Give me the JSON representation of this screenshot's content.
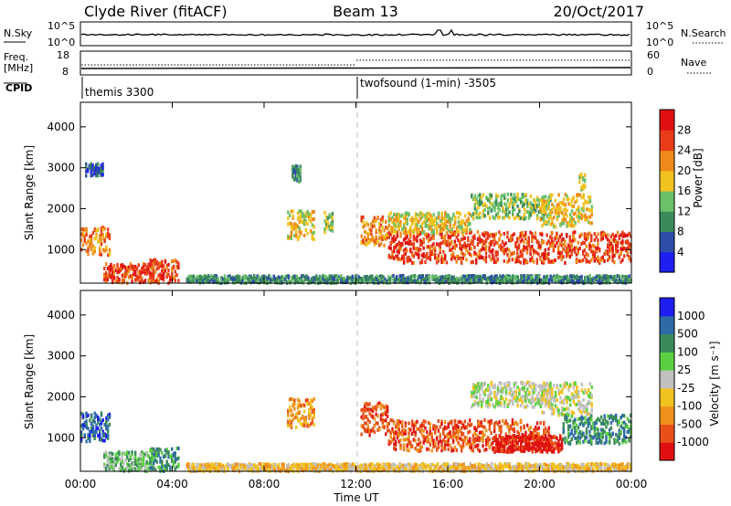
{
  "header": {
    "station": "Clyde River (fitACF)",
    "beam": "Beam 13",
    "date": "20/Oct/2017"
  },
  "top_panels": {
    "nsky_label": "N.Sky",
    "nsearch_label": "N.Search",
    "nsky_ticks": [
      "10^5",
      "10^0"
    ],
    "nsearch_ticks": [
      "10^5",
      "10^0"
    ],
    "freq_label": "Freq.",
    "freq_unit": "[MHz]",
    "freq_ticks": [
      "18",
      "8"
    ],
    "nave_label": "Nave",
    "nave_ticks": [
      "60",
      "0"
    ],
    "cpid_label": "CPID",
    "cpid_segments": [
      {
        "start_hour": 0,
        "label": "themis 3300"
      },
      {
        "start_hour": 12,
        "label": "twofsound (1-min) -3505"
      }
    ]
  },
  "chart_data": [
    {
      "type": "heatmap",
      "name": "power",
      "ylabel": "Slant Range [km]",
      "yticks": [
        1000,
        2000,
        3000,
        4000
      ],
      "ylim": [
        180,
        4600
      ],
      "xlim": [
        0,
        24
      ],
      "colorbar": {
        "label": "Power [dB]",
        "ticks": [
          "4",
          "8",
          "12",
          "16",
          "20",
          "24",
          "28"
        ],
        "colors": [
          "#1e1ef0",
          "#2e4da8",
          "#3b8a5a",
          "#6bc06a",
          "#f2c21f",
          "#f08a1a",
          "#e83c1a",
          "#e01010"
        ]
      },
      "bands": [
        {
          "start": 0.0,
          "end": 1.3,
          "center": 1200,
          "width": 350,
          "level": 5
        },
        {
          "start": 1.0,
          "end": 3.2,
          "center": 400,
          "width": 250,
          "level": 6
        },
        {
          "start": 3.0,
          "end": 4.3,
          "center": 450,
          "width": 300,
          "level": 6
        },
        {
          "start": 0.2,
          "end": 1.0,
          "center": 2950,
          "width": 150,
          "level": 1
        },
        {
          "start": 9.2,
          "end": 9.6,
          "center": 2850,
          "width": 200,
          "level": 2
        },
        {
          "start": 9.0,
          "end": 10.2,
          "center": 1600,
          "width": 350,
          "level": 4
        },
        {
          "start": 10.6,
          "end": 11.0,
          "center": 1650,
          "width": 250,
          "level": 3
        },
        {
          "start": 12.2,
          "end": 13.4,
          "center": 1450,
          "width": 350,
          "level": 5
        },
        {
          "start": 13.4,
          "end": 24.0,
          "center": 1050,
          "width": 380,
          "level": 6
        },
        {
          "start": 13.4,
          "end": 17.0,
          "center": 1650,
          "width": 250,
          "level": 4
        },
        {
          "start": 17.0,
          "end": 20.5,
          "center": 2050,
          "width": 300,
          "level": 3
        },
        {
          "start": 20.0,
          "end": 22.3,
          "center": 1950,
          "width": 400,
          "level": 4
        },
        {
          "start": 21.7,
          "end": 22.0,
          "center": 2650,
          "width": 200,
          "level": 3
        },
        {
          "start": 4.6,
          "end": 24.0,
          "center": 240,
          "width": 120,
          "level": 2
        }
      ]
    },
    {
      "type": "heatmap",
      "name": "velocity",
      "ylabel": "Slant Range [km]",
      "yticks": [
        1000,
        2000,
        3000,
        4000
      ],
      "ylim": [
        180,
        4600
      ],
      "xlim": [
        0,
        24
      ],
      "xticks": [
        "00:00",
        "04:00",
        "08:00",
        "12:00",
        "16:00",
        "20:00",
        "00:00"
      ],
      "xlabel": "Time UT",
      "colorbar": {
        "label": "Velocity [m s⁻¹]",
        "ticks": [
          "-1000",
          "-500",
          "-100",
          "-25",
          "25",
          "100",
          "500",
          "1000"
        ],
        "colors": [
          "#e01010",
          "#e8501a",
          "#f0901c",
          "#f2c21f",
          "#c0c0c0",
          "#5ad040",
          "#3b8a5a",
          "#2e6aa8",
          "#1e1ef0"
        ]
      },
      "bands": [
        {
          "start": 0.0,
          "end": 1.3,
          "center": 1250,
          "width": 350,
          "level": 7
        },
        {
          "start": 1.0,
          "end": 3.2,
          "center": 400,
          "width": 250,
          "level": 5
        },
        {
          "start": 3.0,
          "end": 4.3,
          "center": 450,
          "width": 300,
          "level": 6
        },
        {
          "start": 9.0,
          "end": 10.2,
          "center": 1600,
          "width": 350,
          "level": 2
        },
        {
          "start": 12.2,
          "end": 13.4,
          "center": 1450,
          "width": 400,
          "level": 1
        },
        {
          "start": 13.4,
          "end": 20.5,
          "center": 1050,
          "width": 380,
          "level": 1
        },
        {
          "start": 18.0,
          "end": 21.0,
          "center": 850,
          "width": 200,
          "level": 0
        },
        {
          "start": 17.0,
          "end": 20.5,
          "center": 2050,
          "width": 300,
          "level": 4
        },
        {
          "start": 20.0,
          "end": 22.3,
          "center": 1950,
          "width": 400,
          "level": 4
        },
        {
          "start": 21.0,
          "end": 24.0,
          "center": 1200,
          "width": 350,
          "level": 6
        },
        {
          "start": 4.6,
          "end": 24.0,
          "center": 240,
          "width": 120,
          "level": 3
        }
      ]
    }
  ]
}
